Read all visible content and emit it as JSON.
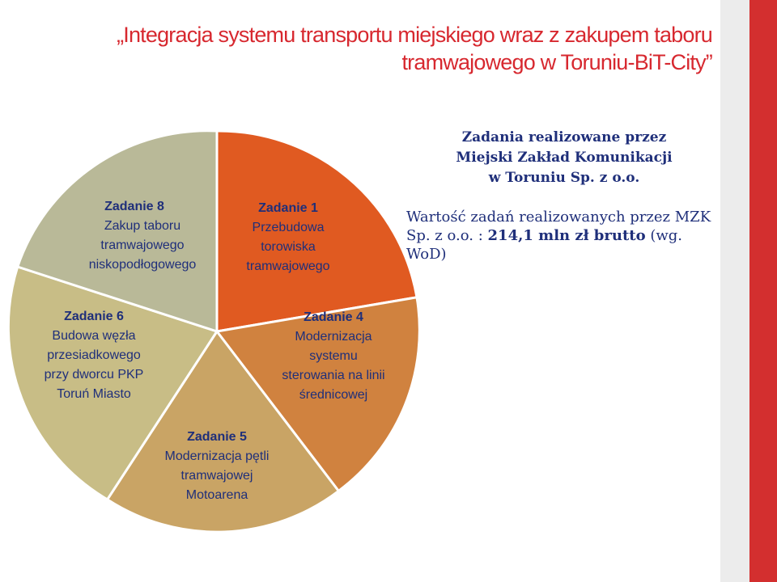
{
  "title": {
    "line1": "„Integracja systemu transportu miejskiego wraz z zakupem taboru",
    "line2": "tramwajowego w Toruniu-BiT-City”"
  },
  "colors": {
    "title": "#d7282f",
    "accent_red": "#d32f2f",
    "band_grey": "#ececec",
    "zad1": "#e05a21",
    "zad4": "#d0823f",
    "zad5": "#c9a465",
    "zad6": "#c8bd86",
    "zad8": "#b9b998"
  },
  "diagram": {
    "segments": [
      {
        "id": "zad1",
        "label": "Zadanie 1",
        "lines": [
          "Przebudowa",
          "torowiska",
          "tramwajowego"
        ]
      },
      {
        "id": "zad4",
        "label": "Zadanie 4",
        "lines": [
          "Modernizacja",
          "systemu",
          "sterowania na linii",
          "średnicowej"
        ]
      },
      {
        "id": "zad5",
        "label": "Zadanie 5",
        "lines": [
          "Modernizacja pętli",
          "tramwajowej",
          "Motoarena"
        ]
      },
      {
        "id": "zad6",
        "label": "Zadanie 6",
        "lines": [
          "Budowa węzła",
          "przesiadkowego",
          "przy dworcu PKP",
          "Toruń Miasto"
        ]
      },
      {
        "id": "zad8",
        "label": "Zadanie 8",
        "lines": [
          "Zakup taboru",
          "tramwajowego",
          "niskopodłogowego"
        ]
      }
    ]
  },
  "panel": {
    "heading": [
      "Zadania realizowane przez",
      "Miejski Zakład Komunikacji",
      "w Toruniu Sp. z o.o."
    ],
    "value_prefix": "Wartość zadań realizowanych przez MZK Sp. z o.o. :",
    "value_amount": "214,1 mln zł brutto",
    "value_suffix": "(wg. WoD)"
  }
}
